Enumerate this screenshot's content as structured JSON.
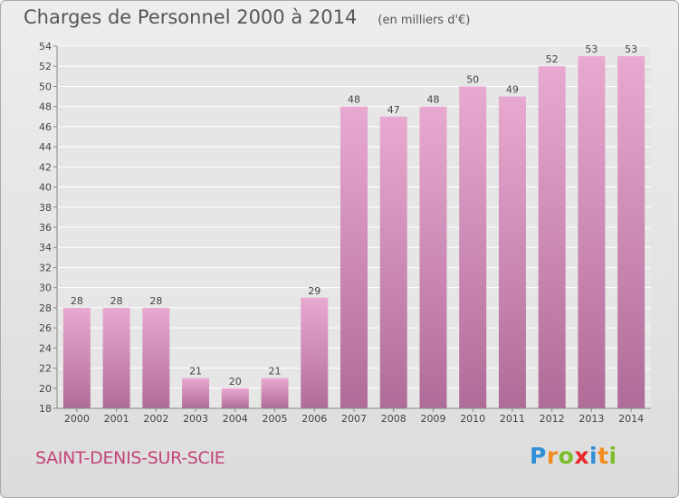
{
  "header": {
    "title": "Charges de Personnel 2000 à 2014",
    "subtitle": "(en milliers d'€)"
  },
  "footer": {
    "commune": "SAINT-DENIS-SUR-SCIE",
    "logo_letters": [
      "P",
      "r",
      "o",
      "x",
      "i",
      "t",
      "i"
    ],
    "logo_colors": [
      "#2f8fd8",
      "#f28c1c",
      "#7bbf2a",
      "#e8262b",
      "#2f8fd8",
      "#f28c1c",
      "#7bbf2a"
    ]
  },
  "colors": {
    "bar_top": "#e8a9d0",
    "bar_bottom": "#b06c98",
    "grid": "#ffffff",
    "axis": "#888888"
  },
  "chart_data": {
    "type": "bar",
    "title": "Charges de Personnel 2000 à 2014",
    "subtitle": "(en milliers d'€)",
    "categories": [
      "2000",
      "2001",
      "2002",
      "2003",
      "2004",
      "2005",
      "2006",
      "2007",
      "2008",
      "2009",
      "2010",
      "2011",
      "2012",
      "2013",
      "2014"
    ],
    "values": [
      28,
      28,
      28,
      21,
      20,
      21,
      29,
      48,
      47,
      48,
      50,
      49,
      52,
      53,
      53
    ],
    "ylim": [
      18,
      54
    ],
    "yticks": [
      18,
      20,
      22,
      24,
      26,
      28,
      30,
      32,
      34,
      36,
      38,
      40,
      42,
      44,
      46,
      48,
      50,
      52,
      54
    ],
    "grid": true,
    "data_labels": true
  }
}
